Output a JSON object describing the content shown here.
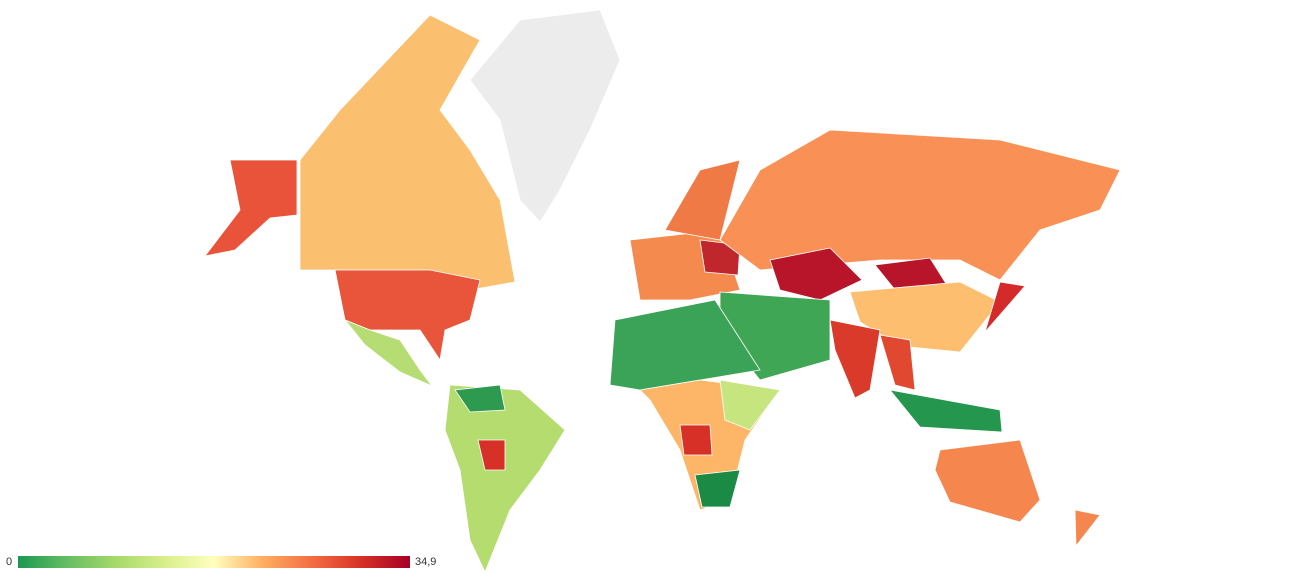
{
  "legend": {
    "min": 0,
    "max": {
      "value": 34.9,
      "label": "34,9"
    },
    "colors": [
      "#1a9850",
      "#66bd63",
      "#a6d96a",
      "#d9ef8b",
      "#ffffbf",
      "#fdae61",
      "#f46d43",
      "#d73027",
      "#a50026"
    ]
  }
}
